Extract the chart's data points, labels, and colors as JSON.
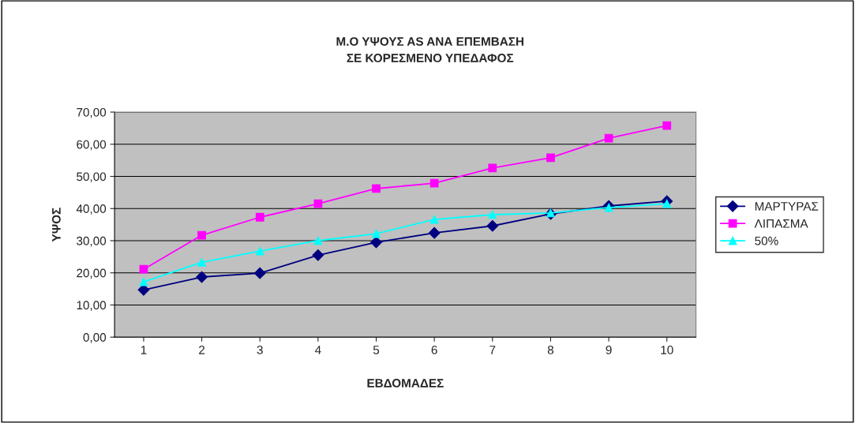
{
  "chart_data": {
    "type": "line",
    "title": "Μ.Ο ΥΨΟΥΣ AS ΑΝΑ ΕΠΕΜΒΑΣΗ\nΣΕ ΚΟΡΕΣΜΕΝΟ ΥΠΕΔΑΦΟΣ",
    "xlabel": "ΕΒΔΟΜΑΔΕΣ",
    "ylabel": "ΥΨΟΣ",
    "categories": [
      "1",
      "2",
      "3",
      "4",
      "5",
      "6",
      "7",
      "8",
      "9",
      "10"
    ],
    "series": [
      {
        "name": "ΜΑΡΤΥΡΑΣ",
        "color": "#000080",
        "marker": "diamond",
        "values": [
          14.7,
          18.7,
          19.9,
          25.5,
          29.5,
          32.4,
          34.6,
          38.3,
          40.8,
          42.3
        ]
      },
      {
        "name": "ΛΙΠΑΣΜΑ",
        "color": "#ff00ff",
        "marker": "square",
        "values": [
          21.1,
          31.7,
          37.3,
          41.5,
          46.2,
          47.9,
          52.6,
          55.8,
          61.9,
          65.8
        ]
      },
      {
        "name": "50%",
        "color": "#00ffff",
        "marker": "triangle",
        "values": [
          17.2,
          23.3,
          26.8,
          30.0,
          32.2,
          36.6,
          38.1,
          38.6,
          40.3,
          41.5
        ]
      }
    ],
    "ylim": [
      0,
      70
    ],
    "yticks": [
      {
        "value": 0,
        "label": "0,00"
      },
      {
        "value": 10,
        "label": "10,00"
      },
      {
        "value": 20,
        "label": "20,00"
      },
      {
        "value": 30,
        "label": "30,00"
      },
      {
        "value": 40,
        "label": "40,00"
      },
      {
        "value": 50,
        "label": "50,00"
      },
      {
        "value": 60,
        "label": "60,00"
      },
      {
        "value": 70,
        "label": "70,00"
      }
    ],
    "grid": "y",
    "legend": "right"
  }
}
